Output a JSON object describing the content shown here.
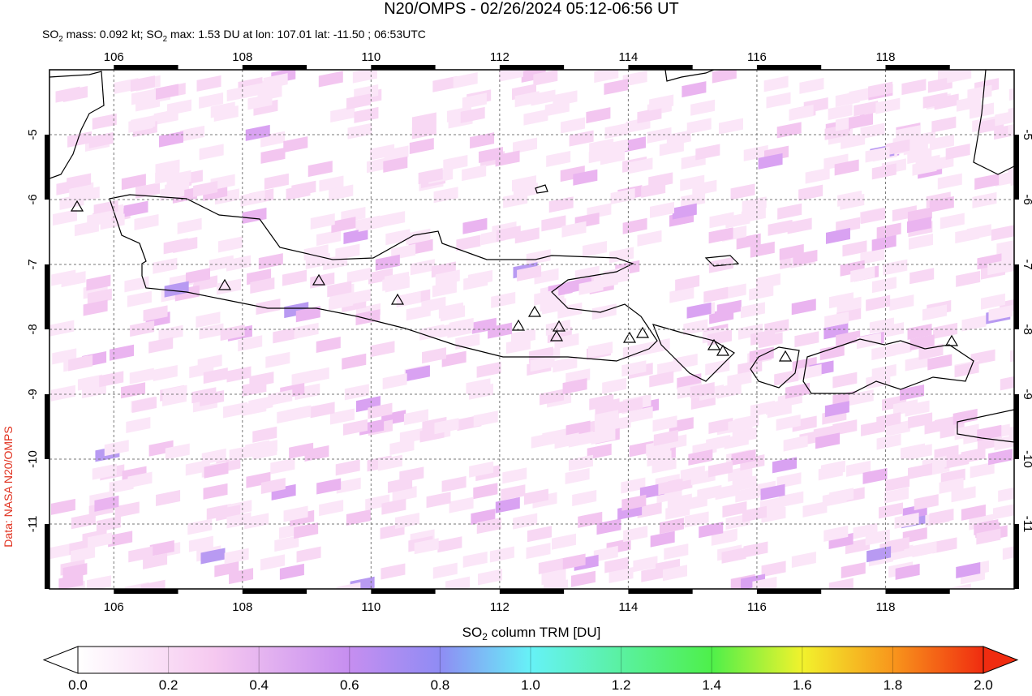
{
  "header": {
    "title": "N20/OMPS - 02/26/2024 05:12-06:56 UT",
    "subtitle": [
      "SO",
      "2",
      " mass: 0.092 kt; SO",
      "2",
      " max: 1.53 DU at lon: 107.01 lat: -11.50 ; 06:53UTC"
    ]
  },
  "credit": "Data: NASA N20/OMPS",
  "map": {
    "xlim": [
      105,
      120
    ],
    "ylim": [
      -4,
      -12
    ],
    "xticks": [
      106,
      108,
      110,
      112,
      114,
      116,
      118
    ],
    "yticks": [
      -5,
      -6,
      -7,
      -8,
      -9,
      -10,
      -11
    ]
  },
  "colorbar": {
    "label": [
      "SO",
      "2",
      " column TRM [DU]"
    ],
    "lim": [
      0,
      2
    ],
    "ticks": [
      {
        "value": 0,
        "label": "0.0"
      },
      {
        "value": 0.2,
        "label": "0.2"
      },
      {
        "value": 0.4,
        "label": "0.4"
      },
      {
        "value": 0.6,
        "label": "0.6"
      },
      {
        "value": 0.8,
        "label": "0.8"
      },
      {
        "value": 1,
        "label": "1.0"
      },
      {
        "value": 1.2,
        "label": "1.2"
      },
      {
        "value": 1.4,
        "label": "1.4"
      },
      {
        "value": 1.6,
        "label": "1.6"
      },
      {
        "value": 1.8,
        "label": "1.8"
      },
      {
        "value": 2,
        "label": "2.0"
      }
    ]
  }
}
